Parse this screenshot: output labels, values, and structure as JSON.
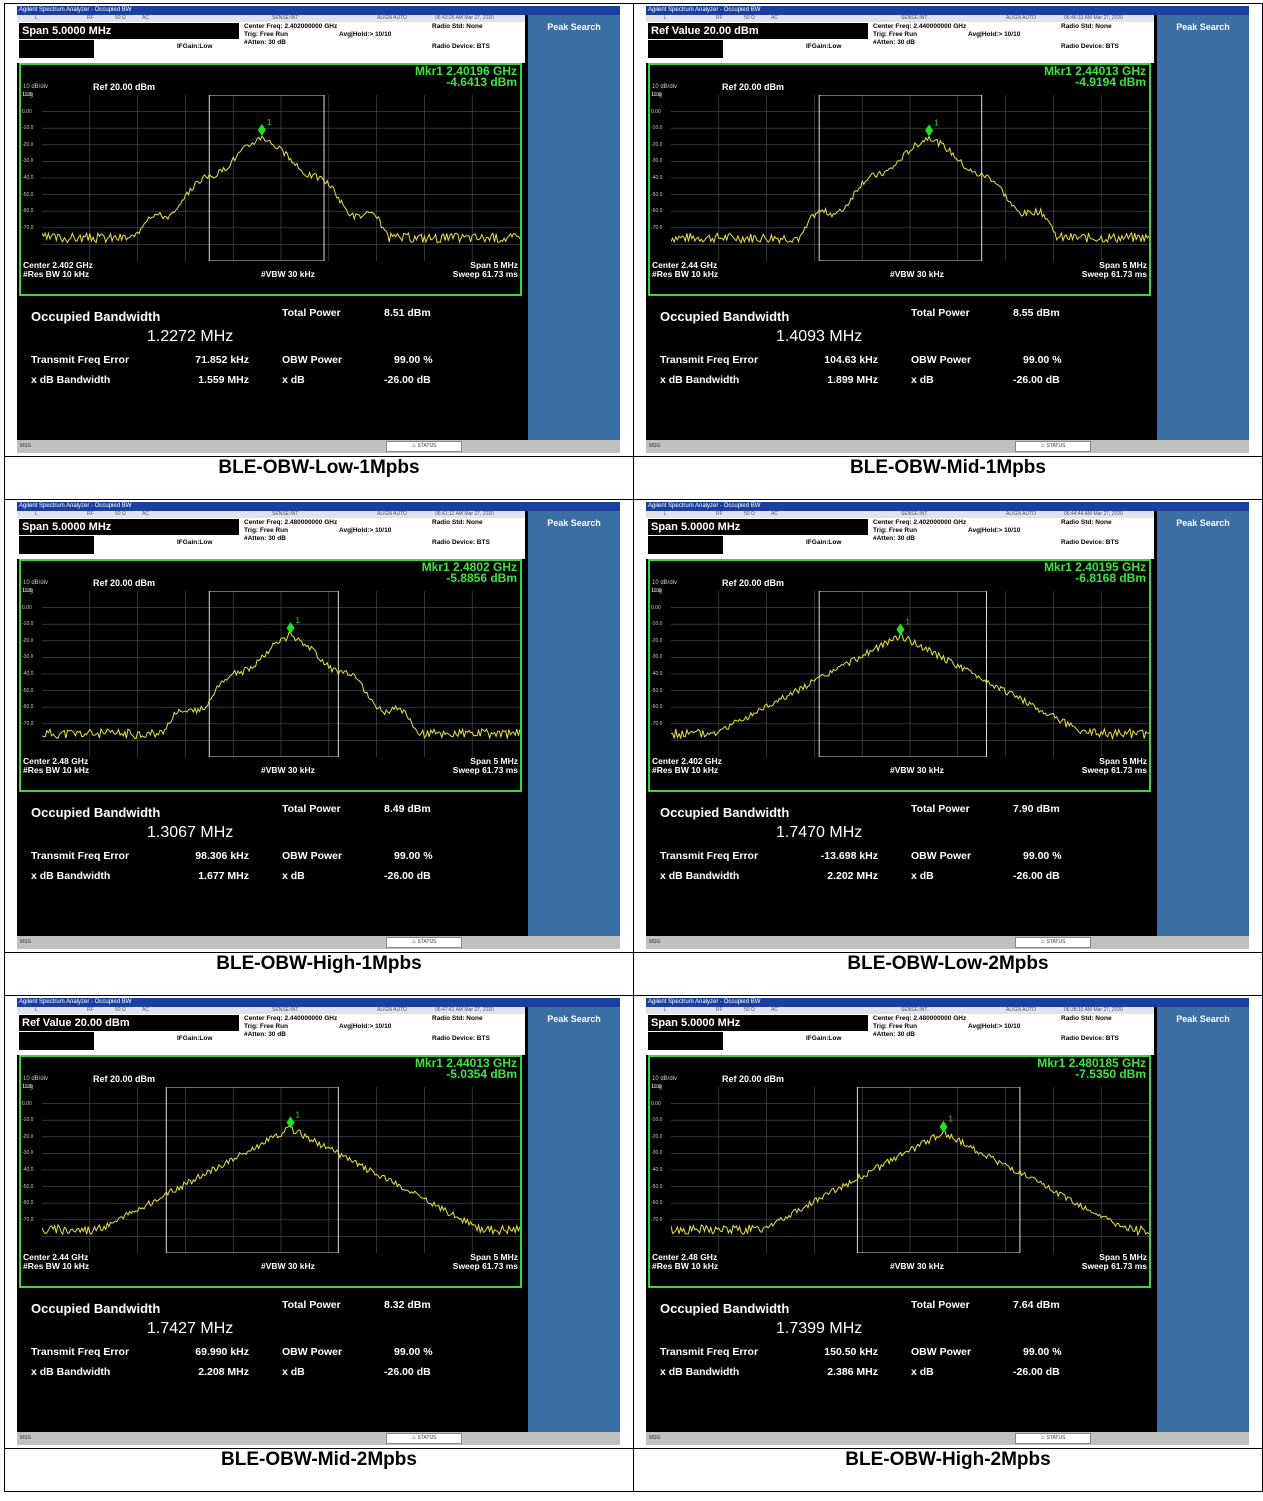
{
  "screens": [
    {
      "title": "Agilent Spectrum Analyzer - Occupied BW",
      "status": {
        "mode_l": "L",
        "rf": "RF",
        "ohm": "50 Ω",
        "ac": "AC",
        "sense": "SENSE:INT",
        "align": "ALIGN AUTO",
        "timestamp": "06:43:26 AM Mar 27, 2020"
      },
      "param": "Span 5.0000 MHz",
      "center_freq": "Center Freq: 2.402000000 GHz",
      "trig": "Trig: Free Run",
      "avg": "Avg|Hold:> 10/10",
      "atten": "#Atten: 30 dB",
      "ifgain": "IFGain:Low",
      "radio_std": "Radio Std: None",
      "radio_dev": "Radio Device: BTS",
      "mkr_line1": "Mkr1  2.40196 GHz",
      "mkr_line2": "-4.6413 dBm",
      "scale": "10 dB/div",
      "log": "Log",
      "ref": "Ref 20.00 dBm",
      "yticks": [
        "10.0",
        "0.00",
        "-10.0",
        "-20.0",
        "-30.0",
        "-40.0",
        "-50.0",
        "-60.0",
        "-70.0"
      ],
      "center": "Center  2.402 GHz",
      "res_bw": "#Res BW  10 kHz",
      "vbw": "#VBW  30 kHz",
      "span": "Span 5 MHz",
      "sweep": "Sweep  61.73 ms",
      "obw_label": "Occupied Bandwidth",
      "obw_value": "1.2272 MHz",
      "total_power_label": "Total Power",
      "total_power": "8.51 dBm",
      "tfe_label": "Transmit Freq Error",
      "tfe": "71.852 kHz",
      "obw_power_label": "OBW Power",
      "obw_power": "99.00 %",
      "xdb_bw_label": "x dB Bandwidth",
      "xdb_bw": "1.559 MHz",
      "xdb_label": "x dB",
      "xdb": "-26.00 dB",
      "softkey": "Peak Search",
      "msg": "MSG",
      "status_bar": "STATUS",
      "plot": {
        "obw_left": 0.35,
        "obw_right": 0.59,
        "peak": 0.46,
        "width": 0.24,
        "lobes": true,
        "seed": 3
      }
    },
    {
      "title": "Agilent Spectrum Analyzer - Occupied BW",
      "status": {
        "mode_l": "L",
        "rf": "RF",
        "ohm": "50 Ω",
        "ac": "AC",
        "sense": "SENSE:INT",
        "align": "ALIGN AUTO",
        "timestamp": "06:46:33 AM Mar 27, 2020"
      },
      "param": "Ref Value 20.00 dBm",
      "center_freq": "Center Freq: 2.440000000 GHz",
      "trig": "Trig: Free Run",
      "avg": "Avg|Hold:> 10/10",
      "atten": "#Atten: 30 dB",
      "ifgain": "IFGain:Low",
      "radio_std": "Radio Std: None",
      "radio_dev": "Radio Device: BTS",
      "mkr_line1": "Mkr1  2.44013 GHz",
      "mkr_line2": "-4.9194 dBm",
      "scale": "10 dB/div",
      "log": "Log",
      "ref": "Ref 20.00 dBm",
      "yticks": [
        "10.0",
        "0.00",
        "-10.0",
        "-20.0",
        "-30.0",
        "-40.0",
        "-50.0",
        "-60.0",
        "-70.0"
      ],
      "center": "Center  2.44 GHz",
      "res_bw": "#Res BW  10 kHz",
      "vbw": "#VBW  30 kHz",
      "span": "Span 5 MHz",
      "sweep": "Sweep  61.73 ms",
      "obw_label": "Occupied Bandwidth",
      "obw_value": "1.4093 MHz",
      "total_power_label": "Total Power",
      "total_power": "8.55 dBm",
      "tfe_label": "Transmit Freq Error",
      "tfe": "104.63 kHz",
      "obw_power_label": "OBW Power",
      "obw_power": "99.00 %",
      "xdb_bw_label": "x dB Bandwidth",
      "xdb_bw": "1.899 MHz",
      "xdb_label": "x dB",
      "xdb": "-26.00 dB",
      "softkey": "Peak Search",
      "msg": "MSG",
      "status_bar": "STATUS",
      "plot": {
        "obw_left": 0.31,
        "obw_right": 0.65,
        "peak": 0.54,
        "width": 0.25,
        "lobes": true,
        "seed": 7
      }
    },
    {
      "title": "Agilent Spectrum Analyzer - Occupied BW",
      "status": {
        "mode_l": "L",
        "rf": "RF",
        "ohm": "50 Ω",
        "ac": "AC",
        "sense": "SENSE:INT",
        "align": "ALIGN AUTO",
        "timestamp": "06:41:12 AM Mar 27, 2020"
      },
      "param": "Span 5.0000 MHz",
      "center_freq": "Center Freq: 2.480000000 GHz",
      "trig": "Trig: Free Run",
      "avg": "Avg|Hold:> 10/10",
      "atten": "#Atten: 30 dB",
      "ifgain": "IFGain:Low",
      "radio_std": "Radio Std: None",
      "radio_dev": "Radio Device: BTS",
      "mkr_line1": "Mkr1  2.4802 GHz",
      "mkr_line2": "-5.8856 dBm",
      "scale": "10 dB/div",
      "log": "Log",
      "ref": "Ref 20.00 dBm",
      "yticks": [
        "10.0",
        "0.00",
        "-10.0",
        "-20.0",
        "-30.0",
        "-40.0",
        "-50.0",
        "-60.0",
        "-70.0"
      ],
      "center": "Center  2.48 GHz",
      "res_bw": "#Res BW  10 kHz",
      "vbw": "#VBW  30 kHz",
      "span": "Span 5 MHz",
      "sweep": "Sweep  61.73 ms",
      "obw_label": "Occupied Bandwidth",
      "obw_value": "1.3067 MHz",
      "total_power_label": "Total Power",
      "total_power": "8.49 dBm",
      "tfe_label": "Transmit Freq Error",
      "tfe": "98.306 kHz",
      "obw_power_label": "OBW Power",
      "obw_power": "99.00 %",
      "xdb_bw_label": "x dB Bandwidth",
      "xdb_bw": "1.677 MHz",
      "xdb_label": "x dB",
      "xdb": "-26.00 dB",
      "softkey": "Peak Search",
      "msg": "MSG",
      "status_bar": "STATUS",
      "plot": {
        "obw_left": 0.35,
        "obw_right": 0.62,
        "peak": 0.52,
        "width": 0.25,
        "lobes": true,
        "seed": 11
      }
    },
    {
      "title": "Agilent Spectrum Analyzer - Occupied BW",
      "status": {
        "mode_l": "L",
        "rf": "RF",
        "ohm": "50 Ω",
        "ac": "AC",
        "sense": "SENSE:INT",
        "align": "ALIGN AUTO",
        "timestamp": "06:44:44 AM Mar 27, 2020"
      },
      "param": "Span 5.0000 MHz",
      "center_freq": "Center Freq: 2.402000000 GHz",
      "trig": "Trig: Free Run",
      "avg": "Avg|Hold:> 10/10",
      "atten": "#Atten: 30 dB",
      "ifgain": "IFGain:Low",
      "radio_std": "Radio Std: None",
      "radio_dev": "Radio Device: BTS",
      "mkr_line1": "Mkr1  2.40195 GHz",
      "mkr_line2": "-6.8168 dBm",
      "scale": "10 dB/div",
      "log": "Log",
      "ref": "Ref 20.00 dBm",
      "yticks": [
        "10.0",
        "0.00",
        "-10.0",
        "-20.0",
        "-30.0",
        "-40.0",
        "-50.0",
        "-60.0",
        "-70.0"
      ],
      "center": "Center  2.402 GHz",
      "res_bw": "#Res BW  10 kHz",
      "vbw": "#VBW  30 kHz",
      "span": "Span 5 MHz",
      "sweep": "Sweep  61.73 ms",
      "obw_label": "Occupied Bandwidth",
      "obw_value": "1.7470 MHz",
      "total_power_label": "Total Power",
      "total_power": "7.90 dBm",
      "tfe_label": "Transmit Freq Error",
      "tfe": "-13.698 kHz",
      "obw_power_label": "OBW Power",
      "obw_power": "99.00 %",
      "xdb_bw_label": "x dB Bandwidth",
      "xdb_bw": "2.202 MHz",
      "xdb_label": "x dB",
      "xdb": "-26.00 dB",
      "softkey": "Peak Search",
      "msg": "MSG",
      "status_bar": "STATUS",
      "plot": {
        "obw_left": 0.31,
        "obw_right": 0.66,
        "peak": 0.48,
        "width": 0.36,
        "lobes": false,
        "seed": 5
      }
    },
    {
      "title": "Agilent Spectrum Analyzer - Occupied BW",
      "status": {
        "mode_l": "L",
        "rf": "RF",
        "ohm": "50 Ω",
        "ac": "AC",
        "sense": "SENSE:INT",
        "align": "ALIGN AUTO",
        "timestamp": "06:47:41 AM Mar 27, 2020"
      },
      "param": "Ref Value 20.00 dBm",
      "center_freq": "Center Freq: 2.440000000 GHz",
      "trig": "Trig: Free Run",
      "avg": "Avg|Hold:> 10/10",
      "atten": "#Atten: 30 dB",
      "ifgain": "IFGain:Low",
      "radio_std": "Radio Std: None",
      "radio_dev": "Radio Device: BTS",
      "mkr_line1": "Mkr1  2.44013 GHz",
      "mkr_line2": "-5.0354 dBm",
      "scale": "10 dB/div",
      "log": "Log",
      "ref": "Ref 20.00 dBm",
      "yticks": [
        "10.0",
        "0.00",
        "-10.0",
        "-20.0",
        "-30.0",
        "-40.0",
        "-50.0",
        "-60.0",
        "-70.0"
      ],
      "center": "Center  2.44 GHz",
      "res_bw": "#Res BW  10 kHz",
      "vbw": "#VBW  30 kHz",
      "span": "Span 5 MHz",
      "sweep": "Sweep  61.73 ms",
      "obw_label": "Occupied Bandwidth",
      "obw_value": "1.7427 MHz",
      "total_power_label": "Total Power",
      "total_power": "8.32 dBm",
      "tfe_label": "Transmit Freq Error",
      "tfe": "69.990 kHz",
      "obw_power_label": "OBW Power",
      "obw_power": "99.00 %",
      "xdb_bw_label": "x dB Bandwidth",
      "xdb_bw": "2.208 MHz",
      "xdb_label": "x dB",
      "xdb": "-26.00 dB",
      "softkey": "Peak Search",
      "msg": "MSG",
      "status_bar": "STATUS",
      "plot": {
        "obw_left": 0.26,
        "obw_right": 0.62,
        "peak": 0.52,
        "width": 0.36,
        "lobes": false,
        "seed": 9
      }
    },
    {
      "title": "Agilent Spectrum Analyzer - Occupied BW",
      "status": {
        "mode_l": "L",
        "rf": "RF",
        "ohm": "50 Ω",
        "ac": "AC",
        "sense": "SENSE:INT",
        "align": "ALIGN AUTO",
        "timestamp": "06:38:10 AM Mar 27, 2020"
      },
      "param": "Span 5.0000 MHz",
      "center_freq": "Center Freq: 2.480000000 GHz",
      "trig": "Trig: Free Run",
      "avg": "Avg|Hold:> 10/10",
      "atten": "#Atten: 30 dB",
      "ifgain": "IFGain:Low",
      "radio_std": "Radio Std: None",
      "radio_dev": "Radio Device: BTS",
      "mkr_line1": "Mkr1  2.480185 GHz",
      "mkr_line2": "-7.5350 dBm",
      "scale": "10 dB/div",
      "log": "Log",
      "ref": "Ref 20.00 dBm",
      "yticks": [
        "10.0",
        "0.00",
        "-10.0",
        "-20.0",
        "-30.0",
        "-40.0",
        "-50.0",
        "-60.0",
        "-70.0"
      ],
      "center": "Center  2.48 GHz",
      "res_bw": "#Res BW  10 kHz",
      "vbw": "#VBW  30 kHz",
      "span": "Span 5 MHz",
      "sweep": "Sweep  61.73 ms",
      "obw_label": "Occupied Bandwidth",
      "obw_value": "1.7399 MHz",
      "total_power_label": "Total Power",
      "total_power": "7.64 dBm",
      "tfe_label": "Transmit Freq Error",
      "tfe": "150.50 kHz",
      "obw_power_label": "OBW Power",
      "obw_power": "99.00 %",
      "xdb_bw_label": "x dB Bandwidth",
      "xdb_bw": "2.386 MHz",
      "xdb_label": "x dB",
      "xdb": "-26.00 dB",
      "softkey": "Peak Search",
      "msg": "MSG",
      "status_bar": "STATUS",
      "plot": {
        "obw_left": 0.39,
        "obw_right": 0.73,
        "peak": 0.57,
        "width": 0.36,
        "lobes": false,
        "seed": 13
      }
    }
  ],
  "captions": [
    "BLE-OBW-Low-1Mpbs",
    "BLE-OBW-Mid-1Mpbs",
    "BLE-OBW-High-1Mpbs",
    "BLE-OBW-Low-2Mpbs",
    "BLE-OBW-Mid-2Mpbs",
    "BLE-OBW-High-2Mpbs"
  ],
  "colors": {
    "trace": "#e8e23a",
    "marker": "#22e022",
    "graph_border": "#3fd23f",
    "softkey_panel": "#3a6ea5",
    "title_bar": "#1b3fa0"
  }
}
